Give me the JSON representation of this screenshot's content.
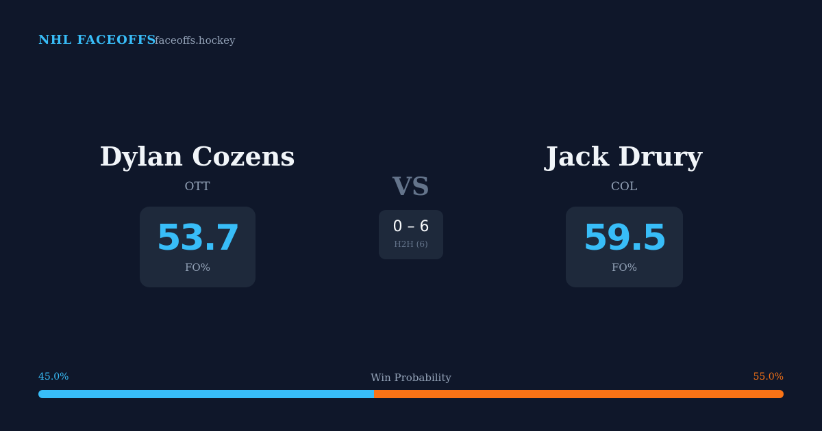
{
  "header": {
    "title": "NHL FACEOFFS",
    "site": "faceoffs.hockey"
  },
  "players": [
    {
      "name": "Dylan Cozens",
      "team": "OTT",
      "stat": "53.7",
      "stat_label": "FO%"
    },
    {
      "name": "Jack Drury",
      "team": "COL",
      "stat": "59.5",
      "stat_label": "FO%"
    }
  ],
  "versus": {
    "label": "VS",
    "score": "0 – 6",
    "caption": "H2H (6)"
  },
  "win_probability": {
    "title": "Win Probability",
    "left": {
      "value": 45.0,
      "label": "45.0%",
      "color": "#38bdf8"
    },
    "right": {
      "value": 55.0,
      "label": "55.0%",
      "color": "#f97316"
    }
  }
}
